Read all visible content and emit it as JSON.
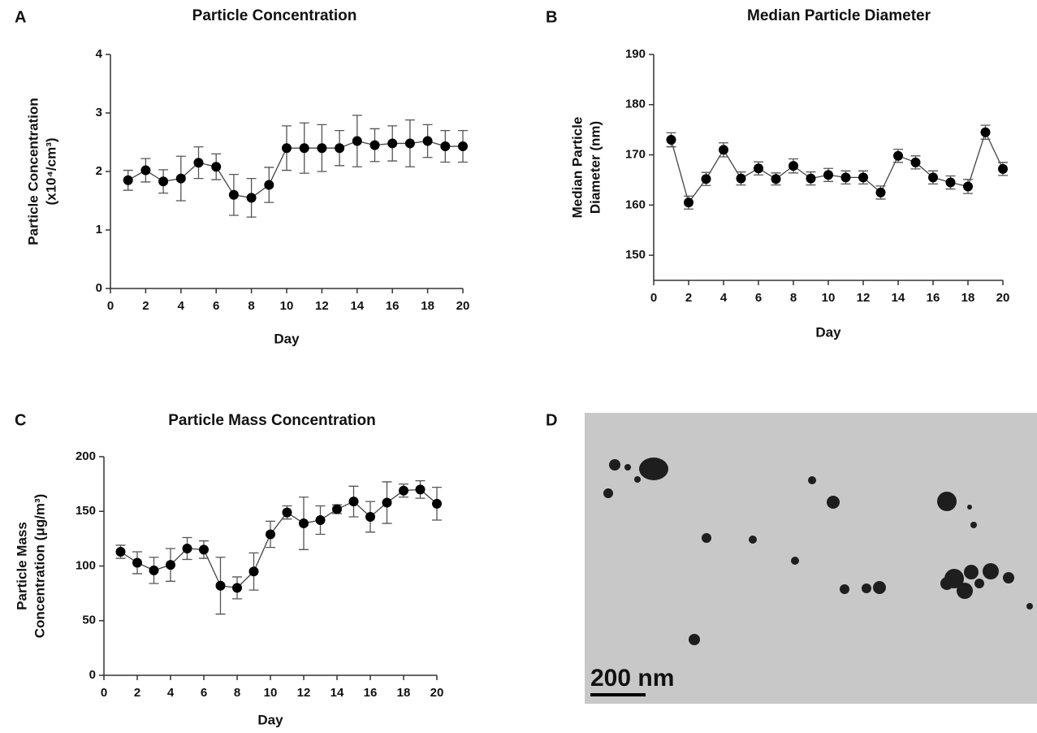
{
  "chart_data": [
    {
      "type": "line",
      "panel_label": "A",
      "title": "Particle Concentration",
      "x_label": "Day",
      "y_label": [
        "Particle Concentration",
        "(x10⁴/cm³)"
      ],
      "color": "#000000",
      "x": [
        1,
        2,
        3,
        4,
        5,
        6,
        7,
        8,
        9,
        10,
        11,
        12,
        13,
        14,
        15,
        16,
        17,
        18,
        19,
        20
      ],
      "values": [
        1.85,
        2.02,
        1.83,
        1.88,
        2.15,
        2.08,
        1.6,
        1.55,
        1.77,
        2.4,
        2.4,
        2.4,
        2.4,
        2.52,
        2.45,
        2.48,
        2.48,
        2.52,
        2.43,
        2.43
      ],
      "errors": [
        0.17,
        0.2,
        0.2,
        0.38,
        0.27,
        0.22,
        0.35,
        0.33,
        0.3,
        0.38,
        0.43,
        0.4,
        0.3,
        0.44,
        0.28,
        0.3,
        0.4,
        0.28,
        0.27,
        0.27
      ],
      "xlim": [
        0,
        20
      ],
      "xticks": [
        0,
        2,
        4,
        6,
        8,
        10,
        12,
        14,
        16,
        18,
        20
      ],
      "ylim": [
        0,
        4
      ],
      "yticks": [
        0,
        1,
        2,
        3,
        4
      ]
    },
    {
      "type": "line",
      "panel_label": "B",
      "title": "Median Particle Diameter",
      "x_label": "Day",
      "y_label": [
        "Median Particle",
        "Diameter (nm)"
      ],
      "color": "#000000",
      "x": [
        1,
        2,
        3,
        4,
        5,
        6,
        7,
        8,
        9,
        10,
        11,
        12,
        13,
        14,
        15,
        16,
        17,
        18,
        19,
        20
      ],
      "values": [
        173,
        160.5,
        165.2,
        171,
        165.3,
        167.3,
        165.2,
        167.8,
        165.3,
        166,
        165.5,
        165.5,
        162.5,
        169.8,
        168.5,
        165.5,
        164.5,
        163.7,
        174.5,
        167.2
      ],
      "errors": [
        1.4,
        1.3,
        1.3,
        1.4,
        1.3,
        1.3,
        1.2,
        1.4,
        1.3,
        1.3,
        1.3,
        1.3,
        1.3,
        1.3,
        1.3,
        1.3,
        1.3,
        1.4,
        1.4,
        1.3
      ],
      "xlim": [
        0,
        20
      ],
      "xticks": [
        0,
        2,
        4,
        6,
        8,
        10,
        12,
        14,
        16,
        18,
        20
      ],
      "ylim": [
        145,
        190
      ],
      "yticks": [
        150,
        160,
        170,
        180,
        190
      ]
    },
    {
      "type": "line",
      "panel_label": "C",
      "title": "Particle Mass Concentration",
      "x_label": "Day",
      "y_label": [
        "Particle Mass",
        "Concentration (μg/m³)"
      ],
      "color": "#000000",
      "x": [
        1,
        2,
        3,
        4,
        5,
        6,
        7,
        8,
        9,
        10,
        11,
        12,
        13,
        14,
        15,
        16,
        17,
        18,
        19,
        20
      ],
      "values": [
        113,
        103,
        96,
        101,
        116,
        115,
        82,
        80,
        95,
        129,
        149,
        139,
        142,
        152,
        159,
        145,
        158,
        169,
        170,
        157
      ],
      "errors": [
        6,
        10,
        12,
        15,
        10,
        8,
        26,
        10,
        17,
        12,
        6,
        24,
        13,
        4,
        14,
        14,
        19,
        6,
        8,
        15
      ],
      "xlim": [
        0,
        20
      ],
      "xticks": [
        0,
        2,
        4,
        6,
        8,
        10,
        12,
        14,
        16,
        18,
        20
      ],
      "ylim": [
        0,
        200
      ],
      "yticks": [
        0,
        50,
        100,
        150,
        200
      ]
    }
  ],
  "image_panel": {
    "panel_label": "D",
    "scale_label": "200 nm"
  }
}
